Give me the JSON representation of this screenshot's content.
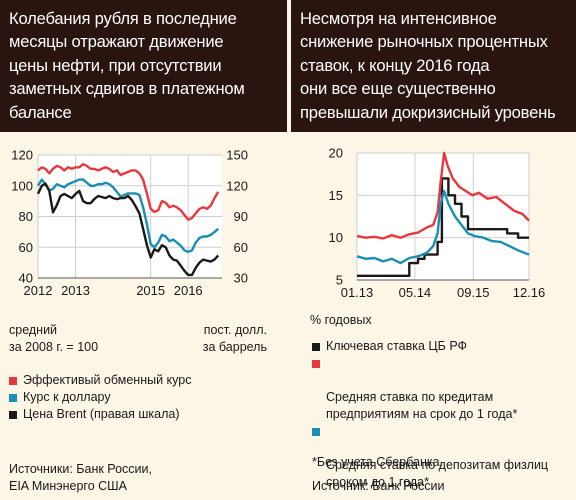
{
  "left": {
    "title": "Колебания рубля в последние\nмесяцы отражают движение\nцены нефти, при отсутствии\nзаметных сдвигов в платежном\nбалансе",
    "note_left": "средний\nза 2008 г. = 100",
    "note_right": "пост. долл.\nза баррель",
    "legend": [
      {
        "label": "Эффективый обменный курс",
        "color": "#e8383d"
      },
      {
        "label": "Курс к доллару",
        "color": "#1a8fb4"
      },
      {
        "label": "Цена Brent (правая шкала)",
        "color": "#1a1a1a"
      }
    ],
    "source": "Источники: Банк России,\nEIA Минэнерго США"
  },
  "right": {
    "title": "Несмотря на интенсивное\nснижение рыночных процентных\nставок, к концу 2016 года\nони все еще существенно\nпревышали докризисный уровень",
    "unit": "% годовых",
    "legend": [
      {
        "label": "Ключевая ставка ЦБ РФ",
        "color": "#1a1a1a"
      },
      {
        "label": "Средняя ставка по кредитам\nпредприятиям на срок до 1 года*",
        "color": "#e8383d"
      },
      {
        "label": "Средняя ставка по депозитам физлиц\nсроком до 1 года*",
        "color": "#1a8fb4"
      }
    ],
    "footnote": "*Без учета Сбербанка.",
    "source": "Источник: Банк России"
  },
  "chart_data": [
    {
      "type": "line",
      "xlim": [
        2012,
        2016.9
      ],
      "ylim": [
        40,
        120
      ],
      "y2lim": [
        30,
        150
      ],
      "x_ticks": [
        2012,
        2013,
        2015,
        2016
      ],
      "x_tick_labels": [
        "2012",
        "2013",
        "2015",
        "2016"
      ],
      "y_ticks": [
        40,
        60,
        80,
        100,
        120
      ],
      "y2_ticks": [
        30,
        60,
        90,
        120,
        150
      ],
      "grid": true,
      "series": [
        {
          "name": "Эффективый обменный курс",
          "axis": "left",
          "color": "#e8383d",
          "x": [
            2012.0,
            2012.1,
            2012.2,
            2012.3,
            2012.4,
            2012.5,
            2012.6,
            2012.7,
            2012.8,
            2012.9,
            2013.0,
            2013.1,
            2013.2,
            2013.3,
            2013.4,
            2013.5,
            2013.6,
            2013.7,
            2013.8,
            2013.9,
            2014.0,
            2014.1,
            2014.2,
            2014.3,
            2014.4,
            2014.5,
            2014.6,
            2014.7,
            2014.8,
            2014.9,
            2015.0,
            2015.1,
            2015.2,
            2015.3,
            2015.4,
            2015.5,
            2015.6,
            2015.7,
            2015.8,
            2015.9,
            2016.0,
            2016.1,
            2016.2,
            2016.3,
            2016.4,
            2016.5,
            2016.6,
            2016.7,
            2016.8
          ],
          "values": [
            110,
            112,
            111,
            108,
            111,
            113,
            112,
            110,
            112,
            111,
            112,
            112,
            114,
            113,
            111,
            111,
            110,
            111,
            112,
            111,
            109,
            110,
            107,
            108,
            109,
            110,
            110,
            108,
            104,
            95,
            85,
            83,
            84,
            90,
            89,
            86,
            87,
            86,
            84,
            81,
            78,
            79,
            82,
            85,
            86,
            85,
            87,
            92,
            96
          ]
        },
        {
          "name": "Курс к доллару",
          "axis": "left",
          "color": "#1a8fb4",
          "x": [
            2012.0,
            2012.1,
            2012.2,
            2012.3,
            2012.4,
            2012.5,
            2012.6,
            2012.7,
            2012.8,
            2012.9,
            2013.0,
            2013.1,
            2013.2,
            2013.3,
            2013.4,
            2013.5,
            2013.6,
            2013.7,
            2013.8,
            2013.9,
            2014.0,
            2014.1,
            2014.2,
            2014.3,
            2014.4,
            2014.5,
            2014.6,
            2014.7,
            2014.8,
            2014.9,
            2015.0,
            2015.1,
            2015.2,
            2015.3,
            2015.4,
            2015.5,
            2015.6,
            2015.7,
            2015.8,
            2015.9,
            2016.0,
            2016.1,
            2016.2,
            2016.3,
            2016.4,
            2016.5,
            2016.6,
            2016.7,
            2016.8
          ],
          "values": [
            100,
            104,
            101,
            97,
            98,
            101,
            100,
            99,
            101,
            102,
            103,
            104,
            104,
            102,
            100,
            100,
            101,
            101,
            102,
            101,
            99,
            96,
            93,
            94,
            95,
            95,
            95,
            94,
            86,
            75,
            62,
            60,
            63,
            68,
            67,
            64,
            65,
            63,
            61,
            58,
            57,
            58,
            63,
            66,
            67,
            67,
            68,
            70,
            72
          ]
        },
        {
          "name": "Цена Brent (правая шкала)",
          "axis": "right",
          "color": "#1a1a1a",
          "x": [
            2012.0,
            2012.1,
            2012.2,
            2012.3,
            2012.4,
            2012.5,
            2012.6,
            2012.7,
            2012.8,
            2012.9,
            2013.0,
            2013.1,
            2013.2,
            2013.3,
            2013.4,
            2013.5,
            2013.6,
            2013.7,
            2013.8,
            2013.9,
            2014.0,
            2014.1,
            2014.2,
            2014.3,
            2014.4,
            2014.5,
            2014.6,
            2014.7,
            2014.8,
            2014.9,
            2015.0,
            2015.1,
            2015.2,
            2015.3,
            2015.4,
            2015.5,
            2015.6,
            2015.7,
            2015.8,
            2015.9,
            2016.0,
            2016.1,
            2016.2,
            2016.3,
            2016.4,
            2016.5,
            2016.6,
            2016.7,
            2016.8
          ],
          "values": [
            112,
            120,
            122,
            115,
            94,
            101,
            110,
            112,
            110,
            108,
            112,
            115,
            105,
            103,
            103,
            107,
            110,
            109,
            108,
            110,
            108,
            107,
            108,
            108,
            110,
            106,
            100,
            93,
            78,
            62,
            50,
            58,
            56,
            62,
            60,
            52,
            48,
            47,
            42,
            37,
            33,
            33,
            40,
            45,
            48,
            47,
            46,
            48,
            52
          ]
        }
      ]
    },
    {
      "type": "line",
      "xlim": [
        2013.0,
        2016.95
      ],
      "ylim": [
        5,
        20
      ],
      "x_ticks": [
        2013.0,
        2014.33,
        2015.67,
        2016.95
      ],
      "x_tick_labels": [
        "01.13",
        "05.14",
        "09.15",
        "12.16"
      ],
      "y_ticks": [
        5,
        10,
        15,
        20
      ],
      "grid": true,
      "series": [
        {
          "name": "Ключевая ставка ЦБ РФ",
          "color": "#1a1a1a",
          "x": [
            2013.0,
            2013.9,
            2013.9,
            2014.2,
            2014.2,
            2014.4,
            2014.4,
            2014.55,
            2014.55,
            2014.85,
            2014.85,
            2014.95,
            2014.95,
            2015.1,
            2015.1,
            2015.25,
            2015.25,
            2015.4,
            2015.4,
            2015.55,
            2015.55,
            2016.45,
            2016.45,
            2016.7,
            2016.7,
            2016.95
          ],
          "values": [
            5.5,
            5.5,
            5.5,
            5.5,
            7.0,
            7.0,
            7.5,
            7.5,
            8.0,
            8.0,
            9.5,
            9.5,
            17.0,
            17.0,
            15.0,
            15.0,
            14.0,
            14.0,
            12.5,
            12.5,
            11.0,
            11.0,
            10.5,
            10.5,
            10.0,
            10.0
          ]
        },
        {
          "name": "Средняя ставка по кредитам предприятиям на срок до 1 года*",
          "color": "#e8383d",
          "x": [
            2013.0,
            2013.2,
            2013.4,
            2013.6,
            2013.8,
            2014.0,
            2014.2,
            2014.4,
            2014.6,
            2014.75,
            2014.85,
            2014.92,
            2015.0,
            2015.08,
            2015.2,
            2015.35,
            2015.5,
            2015.65,
            2015.8,
            2016.0,
            2016.2,
            2016.4,
            2016.6,
            2016.8,
            2016.95
          ],
          "values": [
            10.2,
            10.0,
            10.1,
            9.9,
            10.3,
            10.0,
            10.4,
            10.6,
            11.2,
            11.5,
            13.0,
            16.5,
            20.0,
            18.5,
            17.0,
            16.0,
            15.5,
            15.0,
            15.3,
            14.6,
            14.8,
            14.0,
            13.2,
            12.8,
            12.0
          ]
        },
        {
          "name": "Средняя ставка по депозитам физлиц сроком до 1 года*",
          "color": "#1a8fb4",
          "x": [
            2013.0,
            2013.2,
            2013.4,
            2013.6,
            2013.8,
            2014.0,
            2014.2,
            2014.4,
            2014.6,
            2014.75,
            2014.85,
            2014.92,
            2015.0,
            2015.1,
            2015.25,
            2015.4,
            2015.55,
            2015.7,
            2015.9,
            2016.1,
            2016.3,
            2016.5,
            2016.7,
            2016.95
          ],
          "values": [
            7.8,
            7.5,
            7.6,
            7.2,
            7.5,
            7.0,
            7.6,
            7.8,
            8.2,
            9.0,
            10.5,
            14.0,
            15.5,
            14.0,
            12.5,
            11.5,
            10.5,
            10.2,
            10.0,
            9.6,
            9.5,
            9.0,
            8.5,
            8.0
          ]
        }
      ]
    }
  ]
}
